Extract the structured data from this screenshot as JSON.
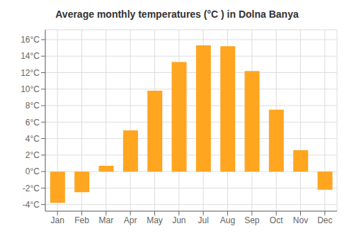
{
  "chart_data": {
    "type": "bar",
    "title": "Average monthly temperatures (°C ) in Dolna Banya",
    "categories": [
      "Jan",
      "Feb",
      "Mar",
      "Apr",
      "May",
      "Jun",
      "Jul",
      "Aug",
      "Sep",
      "Oct",
      "Nov",
      "Dec"
    ],
    "values": [
      -3.8,
      -2.5,
      0.7,
      5.0,
      9.8,
      13.3,
      15.3,
      15.2,
      12.2,
      7.5,
      2.6,
      -2.2
    ],
    "color": "#FFA520",
    "ylim": [
      -4.8,
      17.2
    ],
    "yticks": [
      {
        "value": -4,
        "label": "-4°C"
      },
      {
        "value": -2,
        "label": "-2°C"
      },
      {
        "value": 0,
        "label": "0°C"
      },
      {
        "value": 2,
        "label": "2°C"
      },
      {
        "value": 4,
        "label": "4°C"
      },
      {
        "value": 6,
        "label": "6°C"
      },
      {
        "value": 8,
        "label": "8°C"
      },
      {
        "value": 10,
        "label": "10°C"
      },
      {
        "value": 12,
        "label": "12°C"
      },
      {
        "value": 14,
        "label": "14°C"
      },
      {
        "value": 16,
        "label": "16°C"
      }
    ],
    "grid": true
  }
}
